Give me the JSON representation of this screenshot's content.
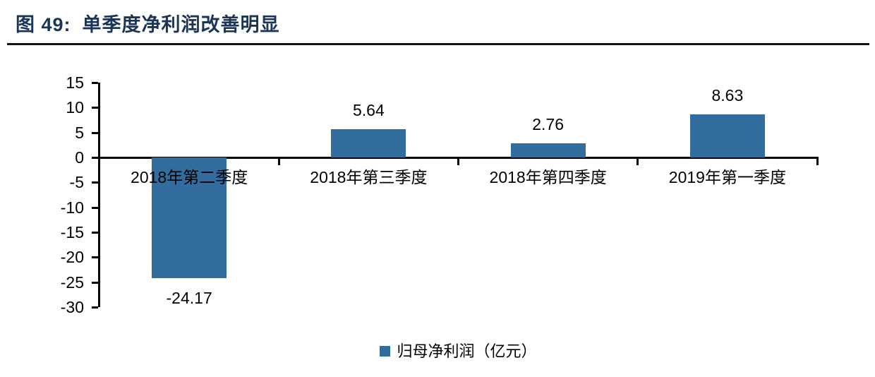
{
  "page": {
    "title_prefix": "图 49:",
    "title_text": "单季度净利润改善明显"
  },
  "chart_data": {
    "type": "bar",
    "title": "单季度净利润改善明显",
    "categories": [
      "2018年第二季度",
      "2018年第三季度",
      "2018年第四季度",
      "2019年第一季度"
    ],
    "values": [
      -24.17,
      5.64,
      2.76,
      8.63
    ],
    "value_labels": [
      "-24.17",
      "5.64",
      "2.76",
      "8.63"
    ],
    "series_name": "归母净利润（亿元）",
    "xlabel": "",
    "ylabel": "",
    "ylim": [
      -30,
      15
    ],
    "yticks": [
      15,
      10,
      5,
      0,
      -5,
      -10,
      -15,
      -20,
      -25,
      -30
    ],
    "grid": false,
    "legend_position": "bottom-center"
  },
  "legend": {
    "label": "归母净利润（亿元）"
  },
  "colors": {
    "bar": "#336C9E",
    "title": "#1A3557",
    "axis": "#000000",
    "background": "#FFFFFF"
  }
}
